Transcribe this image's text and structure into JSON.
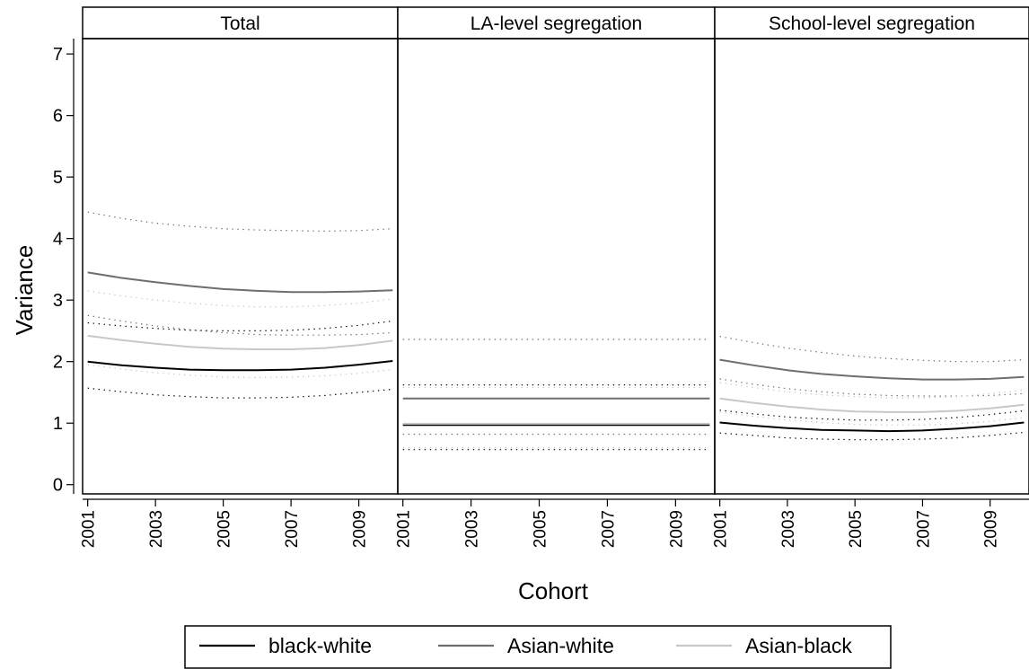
{
  "chart_data": {
    "type": "line",
    "xlabel": "Cohort",
    "ylabel": "Variance",
    "ylim": [
      -0.15,
      7.25
    ],
    "yticks": [
      0,
      1,
      2,
      3,
      4,
      5,
      6,
      7
    ],
    "xlim": [
      2000.85,
      2010.15
    ],
    "xticks": [
      2001,
      2003,
      2005,
      2007,
      2009
    ],
    "panels": [
      "Total",
      "LA-level segregation",
      "School-level segregation"
    ],
    "legend": {
      "position": "bottom",
      "entries": [
        "black-white",
        "Asian-white",
        "Asian-black"
      ]
    },
    "series_colors": {
      "black-white": "#000000",
      "Asian-white": "#6e6e6e",
      "Asian-black": "#c8c8c8"
    },
    "grid": false,
    "x": [
      2001,
      2002,
      2003,
      2004,
      2005,
      2006,
      2007,
      2008,
      2009,
      2010
    ],
    "facets": [
      {
        "panel": "Total",
        "series": [
          {
            "name": "black-white",
            "values": [
              2.0,
              1.94,
              1.9,
              1.87,
              1.86,
              1.86,
              1.87,
              1.9,
              1.95,
              2.01
            ],
            "ci_lower": [
              1.57,
              1.51,
              1.46,
              1.43,
              1.41,
              1.41,
              1.42,
              1.45,
              1.5,
              1.55
            ],
            "ci_upper": [
              2.63,
              2.58,
              2.54,
              2.51,
              2.5,
              2.5,
              2.51,
              2.54,
              2.59,
              2.66
            ]
          },
          {
            "name": "Asian-white",
            "values": [
              3.45,
              3.36,
              3.29,
              3.23,
              3.18,
              3.15,
              3.13,
              3.13,
              3.14,
              3.16
            ],
            "ci_lower": [
              2.75,
              2.66,
              2.58,
              2.52,
              2.47,
              2.44,
              2.43,
              2.43,
              2.44,
              2.47
            ],
            "ci_upper": [
              4.43,
              4.33,
              4.25,
              4.2,
              4.16,
              4.14,
              4.13,
              4.12,
              4.13,
              4.16
            ]
          },
          {
            "name": "Asian-black",
            "values": [
              2.42,
              2.35,
              2.29,
              2.24,
              2.21,
              2.2,
              2.2,
              2.22,
              2.27,
              2.34
            ],
            "ci_lower": [
              1.95,
              1.88,
              1.82,
              1.78,
              1.75,
              1.74,
              1.75,
              1.77,
              1.81,
              1.87
            ],
            "ci_upper": [
              3.15,
              3.07,
              3.0,
              2.95,
              2.91,
              2.89,
              2.89,
              2.91,
              2.95,
              3.02
            ]
          }
        ]
      },
      {
        "panel": "LA-level segregation",
        "series": [
          {
            "name": "black-white",
            "values": [
              0.97,
              0.97,
              0.97,
              0.97,
              0.97,
              0.97,
              0.97,
              0.97,
              0.97,
              0.97
            ],
            "ci_lower": [
              0.57,
              0.57,
              0.57,
              0.57,
              0.57,
              0.57,
              0.57,
              0.57,
              0.57,
              0.57
            ],
            "ci_upper": [
              1.62,
              1.62,
              1.62,
              1.62,
              1.62,
              1.62,
              1.62,
              1.62,
              1.62,
              1.62
            ]
          },
          {
            "name": "Asian-white",
            "values": [
              1.4,
              1.4,
              1.4,
              1.4,
              1.4,
              1.4,
              1.4,
              1.4,
              1.4,
              1.4
            ],
            "ci_lower": [
              0.82,
              0.82,
              0.82,
              0.82,
              0.82,
              0.82,
              0.82,
              0.82,
              0.82,
              0.82
            ],
            "ci_upper": [
              2.36,
              2.36,
              2.36,
              2.36,
              2.36,
              2.36,
              2.36,
              2.36,
              2.36,
              2.36
            ]
          },
          {
            "name": "Asian-black",
            "values": [
              0.99,
              0.99,
              0.99,
              0.99,
              0.99,
              0.99,
              0.99,
              0.99,
              0.99,
              0.99
            ],
            "ci_lower": [
              0.6,
              0.6,
              0.6,
              0.6,
              0.6,
              0.6,
              0.6,
              0.6,
              0.6,
              0.6
            ],
            "ci_upper": [
              1.58,
              1.58,
              1.58,
              1.58,
              1.58,
              1.58,
              1.58,
              1.58,
              1.58,
              1.58
            ]
          }
        ]
      },
      {
        "panel": "School-level segregation",
        "series": [
          {
            "name": "black-white",
            "values": [
              1.01,
              0.96,
              0.92,
              0.89,
              0.88,
              0.87,
              0.88,
              0.91,
              0.95,
              1.01
            ],
            "ci_lower": [
              0.84,
              0.8,
              0.76,
              0.74,
              0.73,
              0.73,
              0.74,
              0.76,
              0.8,
              0.85
            ],
            "ci_upper": [
              1.21,
              1.15,
              1.1,
              1.07,
              1.05,
              1.05,
              1.06,
              1.09,
              1.14,
              1.2
            ]
          },
          {
            "name": "Asian-white",
            "values": [
              2.03,
              1.94,
              1.86,
              1.8,
              1.76,
              1.73,
              1.71,
              1.71,
              1.72,
              1.75
            ],
            "ci_lower": [
              1.72,
              1.63,
              1.56,
              1.51,
              1.47,
              1.45,
              1.44,
              1.44,
              1.45,
              1.48
            ],
            "ci_upper": [
              2.41,
              2.31,
              2.22,
              2.15,
              2.09,
              2.05,
              2.02,
              2.0,
              2.0,
              2.03
            ]
          },
          {
            "name": "Asian-black",
            "values": [
              1.4,
              1.33,
              1.27,
              1.22,
              1.19,
              1.18,
              1.18,
              1.2,
              1.24,
              1.3
            ],
            "ci_lower": [
              1.18,
              1.11,
              1.05,
              1.01,
              0.98,
              0.97,
              0.97,
              0.99,
              1.03,
              1.09
            ],
            "ci_upper": [
              1.66,
              1.58,
              1.51,
              1.46,
              1.43,
              1.41,
              1.41,
              1.43,
              1.48,
              1.54
            ]
          }
        ]
      }
    ]
  }
}
